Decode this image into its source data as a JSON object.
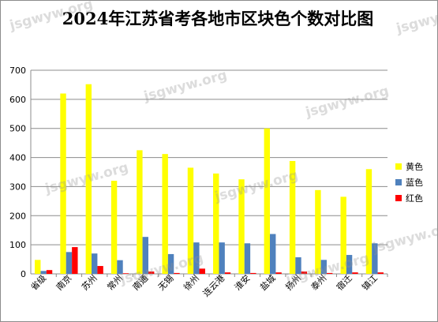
{
  "watermark": "jsgwyw.org",
  "chart_data": {
    "type": "bar",
    "title": "2024年江苏省考各地市区块色个数对比图",
    "categories": [
      "省级",
      "南京",
      "苏州",
      "常州",
      "南通",
      "无锡",
      "徐州",
      "连云港",
      "淮安",
      "盐城",
      "扬州",
      "泰州",
      "宿迁",
      "镇江"
    ],
    "series": [
      {
        "name": "黄色",
        "color": "#ffff00",
        "values": [
          48,
          620,
          652,
          320,
          425,
          412,
          365,
          345,
          325,
          500,
          388,
          288,
          265,
          360
        ]
      },
      {
        "name": "蓝色",
        "color": "#4f81bd",
        "values": [
          10,
          75,
          70,
          47,
          127,
          68,
          108,
          108,
          105,
          137,
          57,
          48,
          65,
          105
        ]
      },
      {
        "name": "红色",
        "color": "#ff0000",
        "values": [
          13,
          92,
          27,
          2,
          8,
          3,
          18,
          5,
          3,
          5,
          8,
          3,
          5,
          5
        ]
      }
    ],
    "ylim": [
      0,
      700
    ],
    "yticks": [
      0,
      100,
      200,
      300,
      400,
      500,
      600,
      700
    ],
    "grid": true,
    "legend": "right"
  }
}
